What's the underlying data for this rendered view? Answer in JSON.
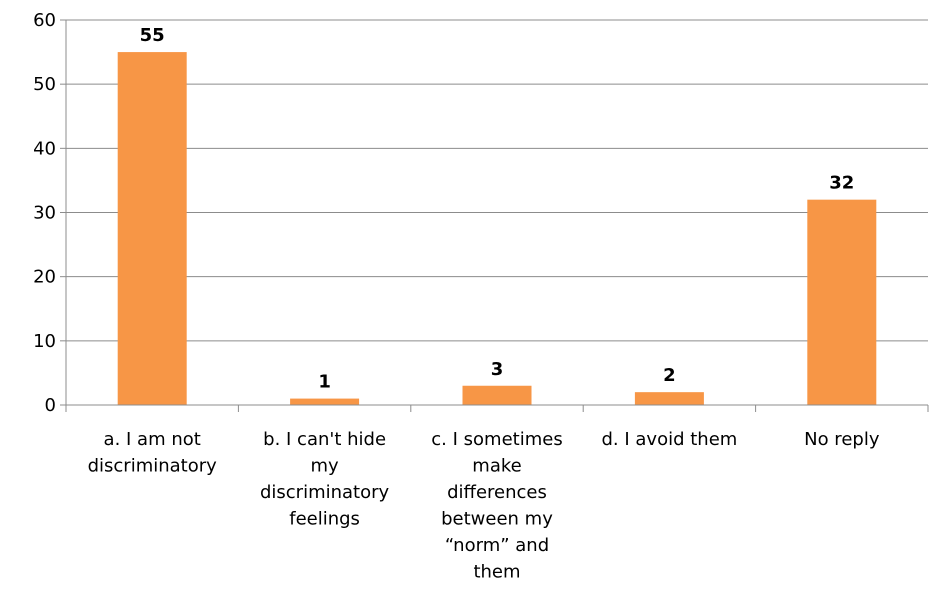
{
  "chart_data": {
    "type": "bar",
    "categories": [
      [
        "a. I am not",
        "discriminatory"
      ],
      [
        "b. I can't hide",
        "my",
        "discriminatory",
        "feelings"
      ],
      [
        "c. I sometimes",
        "make",
        "differences",
        "between my",
        "“norm” and",
        "them"
      ],
      [
        "d. I avoid them"
      ],
      [
        "No reply"
      ]
    ],
    "values": [
      55,
      1,
      3,
      2,
      32
    ],
    "data_labels": [
      "55",
      "1",
      "3",
      "2",
      "32"
    ],
    "ylim": [
      0,
      60
    ],
    "yticks": [
      0,
      10,
      20,
      30,
      40,
      50,
      60
    ],
    "ytick_labels": [
      "0",
      "10",
      "20",
      "30",
      "40",
      "50",
      "60"
    ],
    "grid": true,
    "bar_color": "#f79646",
    "title": "",
    "xlabel": "",
    "ylabel": ""
  }
}
